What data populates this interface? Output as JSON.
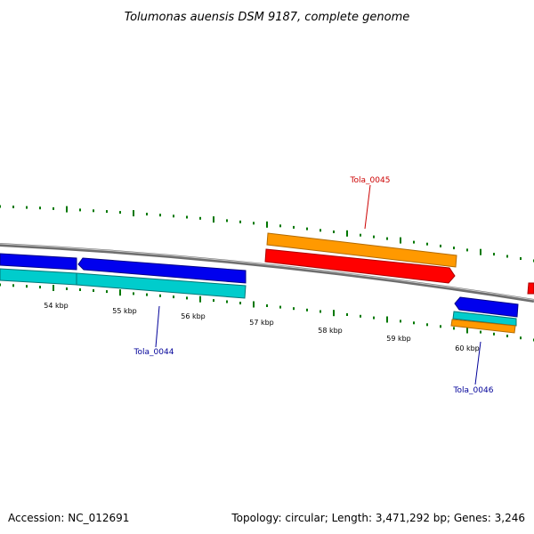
{
  "header": {
    "title": "Tolumonas auensis DSM 9187, complete genome"
  },
  "map": {
    "ticks": [
      "54 kbp",
      "55 kbp",
      "56 kbp",
      "57 kbp",
      "58 kbp",
      "59 kbp",
      "60 kbp"
    ],
    "gene_labels": {
      "tola_0044": "Tola_0044",
      "tola_0045": "Tola_0045",
      "tola_0046": "Tola_0046"
    },
    "colors": {
      "forward_cds": "#ff0000",
      "reverse_cds": "#0000ee",
      "forward_gene": "#ff9900",
      "reverse_gene": "#00cccc",
      "backbone": "#808080",
      "gc_marks": "#007700",
      "forward_label": "#cc0000",
      "reverse_label": "#000099"
    }
  },
  "footer": {
    "accession": "Accession: NC_012691",
    "summary": "Topology: circular; Length: 3,471,292 bp; Genes: 3,246"
  }
}
